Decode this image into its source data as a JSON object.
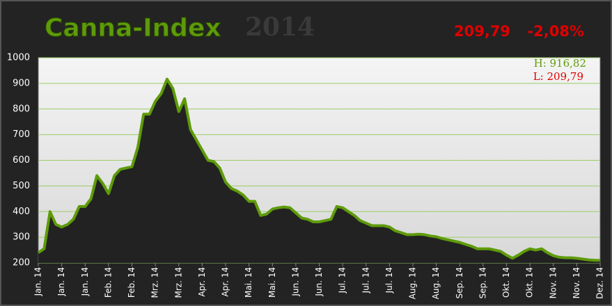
{
  "chart_data": {
    "type": "area",
    "title": "Canna-Index",
    "title_year": "2014",
    "last_value": "209,79",
    "change": "-2,08%",
    "high_label": "H: 916,82",
    "low_label": "L: 209,79",
    "categories": [
      "Jan. 14",
      null,
      null,
      null,
      "Jan. 14",
      null,
      null,
      null,
      "Jan. 14",
      null,
      null,
      null,
      "Feb. 14",
      null,
      null,
      null,
      "Feb. 14",
      null,
      null,
      null,
      "Mrz. 14",
      null,
      null,
      null,
      "Mrz. 14",
      null,
      null,
      null,
      "Apr. 14",
      null,
      null,
      null,
      "Apr. 14",
      null,
      null,
      null,
      "Mai. 14",
      null,
      null,
      null,
      "Mai. 14",
      null,
      null,
      null,
      "Jun. 14",
      null,
      null,
      null,
      "Jun. 14",
      null,
      null,
      null,
      "Jul. 14",
      null,
      null,
      null,
      "Jul. 14",
      null,
      null,
      null,
      "Jul. 14",
      null,
      null,
      null,
      "Aug. 14",
      null,
      null,
      null,
      "Aug. 14",
      null,
      null,
      null,
      "Sep. 14",
      null,
      null,
      null,
      "Sep. 14",
      null,
      null,
      null,
      "Okt. 14",
      null,
      null,
      null,
      "Okt. 14",
      null,
      null,
      null,
      "Nov. 14",
      null,
      null,
      null,
      "Nov. 14",
      null,
      null,
      null,
      "Dez. 14"
    ],
    "values": [
      240,
      255,
      400,
      350,
      340,
      350,
      370,
      420,
      420,
      450,
      540,
      510,
      470,
      540,
      565,
      570,
      575,
      650,
      780,
      780,
      830,
      860,
      916.82,
      880,
      790,
      840,
      720,
      680,
      640,
      600,
      595,
      570,
      515,
      490,
      480,
      465,
      440,
      440,
      385,
      390,
      410,
      415,
      418,
      415,
      395,
      375,
      370,
      360,
      360,
      365,
      370,
      420,
      415,
      400,
      385,
      365,
      355,
      345,
      345,
      345,
      340,
      325,
      318,
      310,
      310,
      312,
      310,
      305,
      302,
      295,
      290,
      285,
      280,
      272,
      265,
      255,
      255,
      255,
      250,
      245,
      230,
      218,
      230,
      245,
      255,
      250,
      255,
      240,
      228,
      222,
      220,
      220,
      218,
      215,
      212,
      210,
      209.79
    ],
    "color": "#5e9b0a",
    "fill": "#222222",
    "ylim": [
      200,
      1000
    ],
    "yticks": [
      200,
      300,
      400,
      500,
      600,
      700,
      800,
      900,
      1000
    ],
    "grid": true
  }
}
